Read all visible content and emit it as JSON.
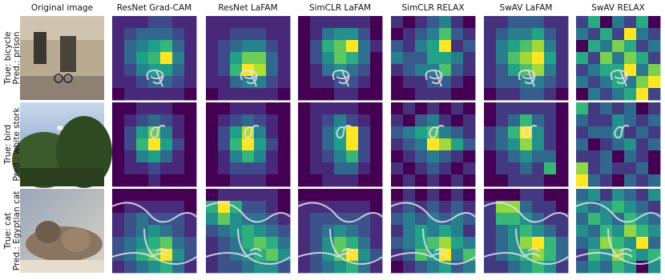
{
  "columns": [
    "Original image",
    "ResNet Grad-CAM",
    "ResNet LaFAM",
    "SimCLR LaFAM",
    "SimCLR RELAX",
    "SwAV LaFAM",
    "SwAV RELAX"
  ],
  "rows": [
    {
      "true": "True: bicycle",
      "pred": "Pred.: prison",
      "maps": [
        [
          [
            1,
            1,
            1,
            2,
            2,
            1,
            1
          ],
          [
            1,
            2,
            3,
            3,
            3,
            2,
            1
          ],
          [
            1,
            3,
            4,
            5,
            6,
            3,
            1
          ],
          [
            1,
            3,
            5,
            6,
            9,
            4,
            1
          ],
          [
            1,
            2,
            4,
            5,
            5,
            3,
            1
          ],
          [
            1,
            1,
            2,
            3,
            3,
            2,
            1
          ],
          [
            0,
            1,
            1,
            1,
            1,
            1,
            0
          ]
        ],
        [
          [
            1,
            1,
            1,
            1,
            1,
            1,
            1
          ],
          [
            1,
            1,
            2,
            2,
            2,
            1,
            1
          ],
          [
            1,
            2,
            3,
            4,
            4,
            2,
            1
          ],
          [
            1,
            2,
            5,
            7,
            7,
            3,
            1
          ],
          [
            1,
            2,
            6,
            9,
            8,
            3,
            1
          ],
          [
            1,
            1,
            3,
            4,
            4,
            2,
            1
          ],
          [
            0,
            1,
            1,
            1,
            1,
            1,
            0
          ]
        ],
        [
          [
            1,
            2,
            2,
            2,
            2,
            2,
            1
          ],
          [
            1,
            2,
            4,
            5,
            5,
            3,
            1
          ],
          [
            1,
            3,
            6,
            7,
            9,
            4,
            2
          ],
          [
            1,
            3,
            5,
            7,
            6,
            4,
            1
          ],
          [
            1,
            2,
            4,
            5,
            4,
            3,
            1
          ],
          [
            1,
            2,
            2,
            3,
            3,
            2,
            1
          ],
          [
            1,
            1,
            1,
            2,
            2,
            1,
            1
          ]
        ],
        [
          [
            3,
            2,
            3,
            4,
            5,
            3,
            2
          ],
          [
            2,
            3,
            4,
            5,
            7,
            4,
            3
          ],
          [
            4,
            3,
            5,
            6,
            9,
            3,
            4
          ],
          [
            5,
            4,
            4,
            6,
            6,
            5,
            3
          ],
          [
            3,
            4,
            5,
            5,
            7,
            4,
            3
          ],
          [
            2,
            3,
            3,
            4,
            4,
            3,
            2
          ],
          [
            2,
            2,
            3,
            3,
            3,
            2,
            2
          ]
        ],
        [
          [
            1,
            1,
            2,
            2,
            2,
            1,
            1
          ],
          [
            1,
            2,
            3,
            3,
            4,
            2,
            1
          ],
          [
            1,
            3,
            4,
            5,
            6,
            3,
            1
          ],
          [
            1,
            3,
            5,
            6,
            7,
            4,
            1
          ],
          [
            1,
            2,
            4,
            5,
            6,
            3,
            1
          ],
          [
            1,
            2,
            2,
            3,
            3,
            2,
            1
          ],
          [
            0,
            1,
            1,
            2,
            2,
            1,
            0
          ]
        ],
        [
          [
            4,
            6,
            3,
            5,
            4,
            6,
            3
          ],
          [
            5,
            4,
            6,
            4,
            8,
            5,
            4
          ],
          [
            3,
            6,
            5,
            7,
            6,
            4,
            5
          ],
          [
            6,
            4,
            7,
            5,
            7,
            6,
            4
          ],
          [
            4,
            5,
            6,
            6,
            8,
            5,
            7
          ],
          [
            5,
            4,
            5,
            6,
            5,
            7,
            8
          ],
          [
            3,
            5,
            4,
            5,
            6,
            8,
            4
          ]
        ]
      ]
    },
    {
      "true": "True: bird",
      "pred": "Pred.: white stork",
      "maps": [
        [
          [
            0,
            0,
            1,
            1,
            1,
            0,
            0
          ],
          [
            0,
            1,
            2,
            3,
            2,
            1,
            0
          ],
          [
            0,
            2,
            5,
            7,
            4,
            1,
            0
          ],
          [
            0,
            2,
            6,
            9,
            5,
            2,
            0
          ],
          [
            0,
            1,
            4,
            5,
            3,
            1,
            0
          ],
          [
            0,
            1,
            1,
            2,
            1,
            1,
            0
          ],
          [
            0,
            0,
            0,
            1,
            0,
            0,
            0
          ]
        ],
        [
          [
            0,
            0,
            1,
            1,
            1,
            0,
            0
          ],
          [
            0,
            1,
            2,
            3,
            2,
            1,
            0
          ],
          [
            0,
            2,
            5,
            8,
            4,
            1,
            0
          ],
          [
            0,
            2,
            6,
            9,
            5,
            2,
            0
          ],
          [
            0,
            1,
            4,
            6,
            4,
            1,
            0
          ],
          [
            0,
            1,
            2,
            2,
            2,
            1,
            0
          ],
          [
            0,
            0,
            1,
            1,
            1,
            0,
            0
          ]
        ],
        [
          [
            0,
            1,
            1,
            1,
            1,
            0,
            0
          ],
          [
            0,
            1,
            2,
            4,
            2,
            1,
            0
          ],
          [
            0,
            1,
            3,
            5,
            9,
            2,
            0
          ],
          [
            0,
            1,
            3,
            5,
            9,
            2,
            0
          ],
          [
            0,
            1,
            2,
            4,
            6,
            2,
            0
          ],
          [
            0,
            1,
            1,
            3,
            3,
            1,
            0
          ],
          [
            0,
            0,
            1,
            1,
            1,
            0,
            0
          ]
        ],
        [
          [
            2,
            3,
            2,
            3,
            2,
            3,
            2
          ],
          [
            3,
            2,
            4,
            5,
            3,
            2,
            3
          ],
          [
            4,
            5,
            6,
            7,
            5,
            4,
            3
          ],
          [
            3,
            4,
            5,
            9,
            8,
            6,
            4
          ],
          [
            2,
            3,
            4,
            5,
            4,
            3,
            2
          ],
          [
            3,
            2,
            3,
            4,
            3,
            2,
            3
          ],
          [
            2,
            3,
            2,
            3,
            2,
            3,
            2
          ]
        ],
        [
          [
            0,
            1,
            1,
            1,
            1,
            1,
            0
          ],
          [
            0,
            1,
            2,
            4,
            2,
            1,
            0
          ],
          [
            1,
            2,
            4,
            6,
            3,
            1,
            0
          ],
          [
            1,
            2,
            3,
            5,
            3,
            1,
            0
          ],
          [
            0,
            1,
            2,
            3,
            2,
            2,
            0
          ],
          [
            0,
            1,
            1,
            2,
            1,
            4,
            0
          ],
          [
            0,
            0,
            1,
            1,
            1,
            0,
            0
          ]
        ],
        [
          [
            7,
            4,
            5,
            4,
            5,
            3,
            4
          ],
          [
            5,
            4,
            4,
            6,
            5,
            4,
            5
          ],
          [
            4,
            5,
            5,
            6,
            4,
            5,
            4
          ],
          [
            5,
            3,
            4,
            5,
            6,
            4,
            5
          ],
          [
            4,
            4,
            5,
            3,
            5,
            4,
            3
          ],
          [
            8,
            4,
            5,
            4,
            4,
            5,
            3
          ],
          [
            9,
            5,
            4,
            3,
            5,
            4,
            5
          ]
        ]
      ]
    },
    {
      "true": "True: cat",
      "pred": "Pred.: Egyptian cat",
      "maps": [
        [
          [
            1,
            1,
            1,
            1,
            1,
            1,
            1
          ],
          [
            1,
            2,
            2,
            2,
            2,
            2,
            1
          ],
          [
            2,
            3,
            4,
            3,
            3,
            3,
            2
          ],
          [
            2,
            3,
            4,
            5,
            4,
            3,
            2
          ],
          [
            3,
            4,
            5,
            6,
            7,
            4,
            3
          ],
          [
            3,
            4,
            6,
            7,
            9,
            5,
            3
          ],
          [
            2,
            3,
            4,
            5,
            6,
            4,
            2
          ]
        ],
        [
          [
            1,
            2,
            2,
            2,
            2,
            2,
            1
          ],
          [
            6,
            9,
            6,
            3,
            3,
            2,
            1
          ],
          [
            5,
            7,
            5,
            4,
            4,
            3,
            2
          ],
          [
            3,
            4,
            5,
            6,
            5,
            4,
            3
          ],
          [
            2,
            3,
            4,
            6,
            7,
            6,
            4
          ],
          [
            2,
            3,
            4,
            5,
            6,
            7,
            5
          ],
          [
            2,
            3,
            3,
            4,
            5,
            5,
            3
          ]
        ],
        [
          [
            1,
            1,
            1,
            1,
            1,
            1,
            1
          ],
          [
            2,
            2,
            2,
            2,
            2,
            2,
            1
          ],
          [
            2,
            3,
            3,
            3,
            3,
            3,
            2
          ],
          [
            2,
            3,
            4,
            5,
            4,
            3,
            2
          ],
          [
            2,
            3,
            5,
            7,
            6,
            4,
            2
          ],
          [
            2,
            3,
            5,
            7,
            9,
            5,
            3
          ],
          [
            2,
            3,
            4,
            5,
            6,
            4,
            2
          ]
        ],
        [
          [
            2,
            3,
            2,
            3,
            2,
            3,
            2
          ],
          [
            3,
            4,
            3,
            4,
            3,
            4,
            3
          ],
          [
            4,
            5,
            4,
            5,
            4,
            5,
            4
          ],
          [
            3,
            5,
            6,
            5,
            6,
            5,
            3
          ],
          [
            4,
            5,
            6,
            7,
            8,
            6,
            5
          ],
          [
            3,
            4,
            7,
            6,
            9,
            5,
            7
          ],
          [
            2,
            3,
            4,
            5,
            6,
            4,
            5
          ]
        ],
        [
          [
            1,
            1,
            1,
            2,
            2,
            1,
            1
          ],
          [
            2,
            6,
            6,
            3,
            2,
            2,
            1
          ],
          [
            2,
            5,
            5,
            4,
            3,
            2,
            2
          ],
          [
            2,
            3,
            4,
            5,
            4,
            3,
            2
          ],
          [
            2,
            3,
            4,
            6,
            7,
            5,
            3
          ],
          [
            2,
            3,
            4,
            5,
            6,
            5,
            3
          ],
          [
            2,
            2,
            3,
            4,
            5,
            4,
            2
          ]
        ],
        [
          [
            4,
            5,
            3,
            5,
            4,
            3,
            5
          ],
          [
            5,
            4,
            5,
            6,
            5,
            4,
            3
          ],
          [
            4,
            6,
            5,
            4,
            6,
            5,
            4
          ],
          [
            5,
            4,
            6,
            5,
            7,
            6,
            5
          ],
          [
            4,
            5,
            7,
            6,
            5,
            8,
            4
          ],
          [
            3,
            6,
            5,
            7,
            6,
            5,
            6
          ],
          [
            4,
            5,
            4,
            6,
            5,
            2,
            5
          ]
        ]
      ]
    }
  ]
}
